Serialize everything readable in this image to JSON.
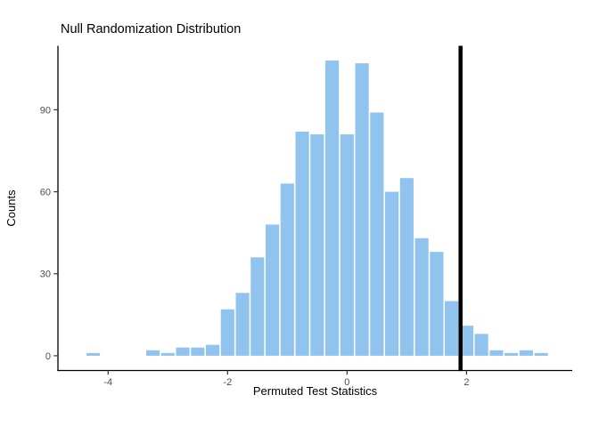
{
  "chart_data": {
    "type": "bar",
    "subtype": "histogram",
    "title": "Null Randomization Distribution",
    "xlabel": "Permuted Test Statistics",
    "ylabel": "Counts",
    "binwidth": 0.25,
    "bins": [
      {
        "x": -4.25,
        "count": 1
      },
      {
        "x": -3.25,
        "count": 2
      },
      {
        "x": -3.0,
        "count": 1
      },
      {
        "x": -2.75,
        "count": 3
      },
      {
        "x": -2.5,
        "count": 3
      },
      {
        "x": -2.25,
        "count": 4
      },
      {
        "x": -2.0,
        "count": 17
      },
      {
        "x": -1.75,
        "count": 23
      },
      {
        "x": -1.5,
        "count": 36
      },
      {
        "x": -1.25,
        "count": 48
      },
      {
        "x": -1.0,
        "count": 63
      },
      {
        "x": -0.75,
        "count": 82
      },
      {
        "x": -0.5,
        "count": 81
      },
      {
        "x": -0.25,
        "count": 108
      },
      {
        "x": 0.0,
        "count": 81
      },
      {
        "x": 0.25,
        "count": 107
      },
      {
        "x": 0.5,
        "count": 89
      },
      {
        "x": 0.75,
        "count": 60
      },
      {
        "x": 1.0,
        "count": 65
      },
      {
        "x": 1.25,
        "count": 43
      },
      {
        "x": 1.5,
        "count": 38
      },
      {
        "x": 1.75,
        "count": 20
      },
      {
        "x": 2.0,
        "count": 11
      },
      {
        "x": 2.25,
        "count": 8
      },
      {
        "x": 2.5,
        "count": 2
      },
      {
        "x": 2.75,
        "count": 1
      },
      {
        "x": 3.0,
        "count": 2
      },
      {
        "x": 3.25,
        "count": 1
      }
    ],
    "observed_stat_line_x": 1.9,
    "x_ticks": [
      "-4",
      "-2",
      "0",
      "2"
    ],
    "y_ticks": [
      "0",
      "30",
      "60",
      "90"
    ],
    "xlim": [
      -4.84,
      3.77
    ],
    "ylim": [
      -5.4,
      113.4
    ],
    "grid": false,
    "legend_position": "none",
    "colors": {
      "bar_fill": "#90C4EE",
      "bar_gap": "#FFFFFF",
      "observed_line": "#000000",
      "axis_line": "#000000",
      "tick_mark": "#333333",
      "tick_label": "#4D4D4D",
      "background": "#FFFFFF"
    }
  }
}
